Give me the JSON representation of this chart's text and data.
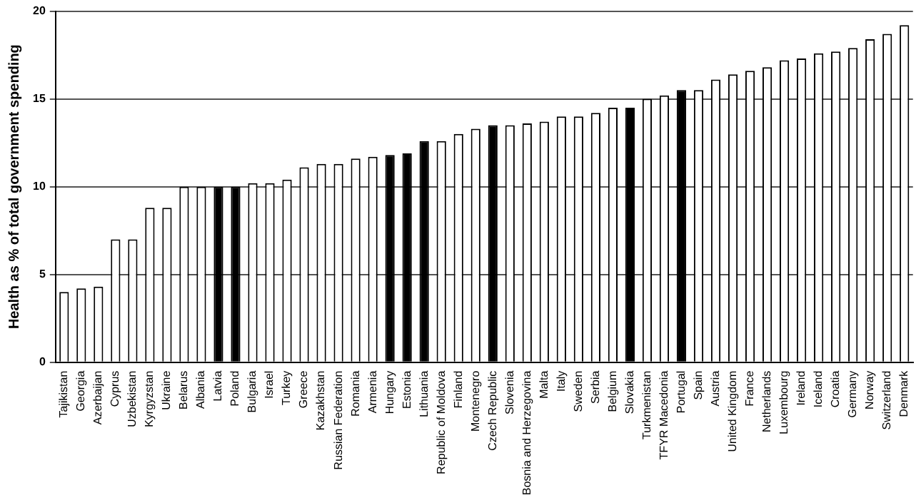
{
  "chart_data": {
    "type": "bar",
    "ylabel": "Health as % of total government spending",
    "categories": [
      "Tajikistan",
      "Georgia",
      "Azerbaijan",
      "Cyprus",
      "Uzbekistan",
      "Kyrgyzstan",
      "Ukraine",
      "Belarus",
      "Albania",
      "Latvia",
      "Poland",
      "Bulgaria",
      "Israel",
      "Turkey",
      "Greece",
      "Kazakhstan",
      "Russian Federation",
      "Romania",
      "Armenia",
      "Hungary",
      "Estonia",
      "Lithuania",
      "Republic of Moldova",
      "Finland",
      "Montenegro",
      "Czech Republic",
      "Slovenia",
      "Bosnia and Herzegovina",
      "Malta",
      "Italy",
      "Sweden",
      "Serbia",
      "Belgium",
      "Slovakia",
      "Turkmenistan",
      "TFYR Macedonia",
      "Portugal",
      "Spain",
      "Austria",
      "United Kingdom",
      "France",
      "Netherlands",
      "Luxembourg",
      "Ireland",
      "Iceland",
      "Croatia",
      "Germany",
      "Norway",
      "Switzerland",
      "Denmark"
    ],
    "values": [
      4.0,
      4.2,
      4.3,
      7.0,
      7.0,
      8.8,
      8.8,
      10.0,
      10.0,
      10.0,
      10.0,
      10.2,
      10.2,
      10.4,
      11.1,
      11.3,
      11.3,
      11.6,
      11.7,
      11.8,
      11.9,
      12.6,
      12.6,
      13.0,
      13.3,
      13.5,
      13.5,
      13.6,
      13.7,
      14.0,
      14.0,
      14.2,
      14.5,
      14.5,
      15.0,
      15.2,
      15.5,
      15.5,
      16.1,
      16.4,
      16.6,
      16.8,
      17.2,
      17.3,
      17.6,
      17.7,
      17.9,
      18.4,
      18.7,
      19.2
    ],
    "colors": [
      "#ffffff",
      "#ffffff",
      "#ffffff",
      "#ffffff",
      "#ffffff",
      "#ffffff",
      "#ffffff",
      "#ffffff",
      "#ffffff",
      "#000000",
      "#000000",
      "#ffffff",
      "#ffffff",
      "#ffffff",
      "#ffffff",
      "#ffffff",
      "#ffffff",
      "#ffffff",
      "#ffffff",
      "#000000",
      "#000000",
      "#000000",
      "#ffffff",
      "#ffffff",
      "#ffffff",
      "#000000",
      "#ffffff",
      "#ffffff",
      "#ffffff",
      "#ffffff",
      "#ffffff",
      "#ffffff",
      "#ffffff",
      "#000000",
      "#ffffff",
      "#ffffff",
      "#000000",
      "#ffffff",
      "#ffffff",
      "#ffffff",
      "#ffffff",
      "#ffffff",
      "#ffffff",
      "#ffffff",
      "#ffffff",
      "#ffffff",
      "#ffffff",
      "#ffffff",
      "#ffffff",
      "#ffffff"
    ],
    "ylim": [
      0,
      20
    ],
    "yticks": [
      0,
      5,
      10,
      15,
      20
    ],
    "grid": "y",
    "legend": false
  }
}
